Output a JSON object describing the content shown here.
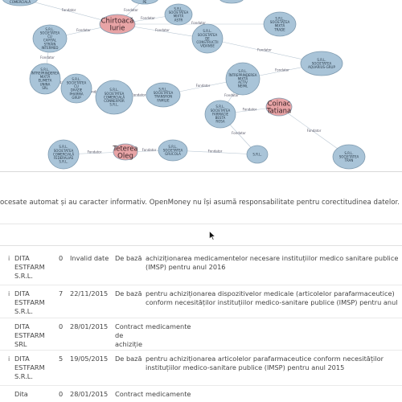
{
  "graph": {
    "nodes": [
      {
        "id": "n0",
        "lines": [
          "S.R.L.",
          "SOCIETATEA",
          "COMERCIALĂ"
        ],
        "color": "#a9c4d8",
        "kind": "company"
      },
      {
        "id": "n1",
        "lines": [
          "S.R.L.",
          "SOCIETATEA",
          "PE"
        ],
        "color": "#a9c4d8",
        "kind": "company"
      },
      {
        "id": "n2",
        "lines": [
          "S.R.L."
        ],
        "color": "#a9c4d8",
        "kind": "company"
      },
      {
        "id": "n3",
        "lines": [
          "Chirtoacă",
          "Iurie"
        ],
        "color": "#e8a4a6",
        "kind": "person"
      },
      {
        "id": "n4",
        "lines": [
          "S.R.L.",
          "SOCIETATEA",
          "CU",
          "CAPITAL",
          "STRĂIN",
          "INTERMED"
        ],
        "color": "#a9c4d8",
        "kind": "company"
      },
      {
        "id": "n5",
        "lines": [
          "S.R.L.",
          "SOCIETATEA",
          "DE",
          "CONSTRUCȚII",
          "VIDANSE"
        ],
        "color": "#a9c4d8",
        "kind": "company"
      },
      {
        "id": "n6",
        "lines": [
          "S.R.L.",
          "SOCIETATEA",
          "MIXTĂ",
          "ASTR"
        ],
        "color": "#a9c4d8",
        "kind": "company"
      },
      {
        "id": "n7",
        "lines": [
          "S.R.L.",
          "SOCIETATEA",
          "MIXTĂ",
          "TRADE"
        ],
        "color": "#a9c4d8",
        "kind": "company"
      },
      {
        "id": "n8",
        "lines": [
          "S.R.L.",
          "ÎNTREPRINDEREA",
          "MIXTĂ",
          "ELIMETA",
          "UNINA",
          "SRL"
        ],
        "color": "#a9c4d8",
        "kind": "company"
      },
      {
        "id": "n9",
        "lines": [
          "S.R.L.",
          "SOCIETATEA",
          "CU",
          "DIVIZIE",
          "PHARMA",
          "GRUP"
        ],
        "color": "#a9c4d8",
        "kind": "company"
      },
      {
        "id": "n10",
        "lines": [
          "S.R.L.",
          "SOCIETATEA",
          "COMERCIALĂ",
          "CONNEXPOR",
          "S.R.L."
        ],
        "color": "#a9c4d8",
        "kind": "company"
      },
      {
        "id": "n11",
        "lines": [
          "S.R.L.",
          "SOCIETATEA",
          "TRANSRON",
          "FAMILIE"
        ],
        "color": "#a9c4d8",
        "kind": "company"
      },
      {
        "id": "n12",
        "lines": [
          "S.R.L.",
          "ÎNTREPRINDEREA",
          "MIXTĂ",
          "ACTIV",
          "NEIML"
        ],
        "color": "#a9c4d8",
        "kind": "company"
      },
      {
        "id": "n13",
        "lines": [
          "S.R.L.",
          "SOCIETATEA",
          "AQUARIUS-GRUP"
        ],
        "color": "#a9c4d8",
        "kind": "company"
      },
      {
        "id": "n14",
        "lines": [
          "S.R.L.",
          "SOCIETATEA",
          "FARMACIE",
          "BESTA",
          "ROSA"
        ],
        "color": "#a9c4d8",
        "kind": "company"
      },
      {
        "id": "n15",
        "lines": [
          "Coinac",
          "Tatiana"
        ],
        "color": "#e8a4a6",
        "kind": "person"
      },
      {
        "id": "n16",
        "lines": [
          "S.R.L.",
          "SOCIETATEA",
          "COMERCIALĂ",
          "FEDERALIAS",
          "S.R.L."
        ],
        "color": "#a9c4d8",
        "kind": "company"
      },
      {
        "id": "n17",
        "lines": [
          "Teterea",
          "Oleg"
        ],
        "color": "#e8a4a6",
        "kind": "person"
      },
      {
        "id": "n18",
        "lines": [
          "S.R.L.",
          "SOCIETATEA",
          "GRUCOLA"
        ],
        "color": "#a9c4d8",
        "kind": "company"
      },
      {
        "id": "n19",
        "lines": [
          "S.R.L.",
          "SOCIETATEA",
          "TRAN"
        ],
        "color": "#a9c4d8",
        "kind": "company"
      },
      {
        "id": "n20",
        "lines": [
          "S.R.L."
        ],
        "color": "#a9c4d8",
        "kind": "company"
      }
    ],
    "edges": [
      {
        "from": "n3",
        "to": "n0",
        "label": "Fondator"
      },
      {
        "from": "n3",
        "to": "n1",
        "label": "Fondator"
      },
      {
        "from": "n3",
        "to": "n4",
        "label": "Fondator"
      },
      {
        "from": "n3",
        "to": "n5",
        "label": "Fondator"
      },
      {
        "from": "n3",
        "to": "n7",
        "label": "Fondator"
      },
      {
        "from": "n3",
        "to": "n6",
        "label": "Fondator"
      },
      {
        "from": "n4",
        "to": "n8",
        "label": "Fondator"
      },
      {
        "from": "n8",
        "to": "n9",
        "label": "Fondator"
      },
      {
        "from": "n9",
        "to": "n10",
        "label": "Fondator"
      },
      {
        "from": "n10",
        "to": "n11",
        "label": "Fondator"
      },
      {
        "from": "n11",
        "to": "n12",
        "label": "Fondator"
      },
      {
        "from": "n12",
        "to": "n13",
        "label": "Fondator"
      },
      {
        "from": "n12",
        "to": "n14",
        "label": "Fondator"
      },
      {
        "from": "n14",
        "to": "n15",
        "label": "Fondator"
      },
      {
        "from": "n15",
        "to": "n19",
        "label": "Fondator"
      },
      {
        "from": "n17",
        "to": "n16",
        "label": "Fondator"
      },
      {
        "from": "n17",
        "to": "n18",
        "label": "Fondator"
      },
      {
        "from": "n18",
        "to": "n20",
        "label": "Fondator"
      },
      {
        "from": "n14",
        "to": "n20",
        "label": "Fondator"
      },
      {
        "from": "n5",
        "to": "n13",
        "label": "Fondator"
      }
    ]
  },
  "disclaimer": "ocesate automat și au caracter informativ. OpenMoney nu își asumă responsabilitate pentru corectitudinea datelor. Mai multe",
  "contracts": [
    {
      "bullet": "i",
      "company": "DITA ESTFARM S.R.L.",
      "num": "0",
      "date": "Invalid date",
      "procedure": "De bază",
      "object": "achiziționarea medicamentelor necesare instituțiilor medico sanitare publice (IMSP) pentru anul 2016"
    },
    {
      "bullet": "i",
      "company": "DITA ESTFARM S.R.L.",
      "num": "7",
      "date": "22/11/2015",
      "procedure": "De bază",
      "object": "pentru achiziționarea dispozitivelor medicale (articolelor parafarmaceutice) conform necesităților instituțiilor medico-sanitare publice (IMSP) pentru anul"
    },
    {
      "bullet": "",
      "company": "DITA ESTFARM SRL",
      "num": "0",
      "date": "28/01/2015",
      "procedure": "Contract de achiziție",
      "object": "medicamente"
    },
    {
      "bullet": "i",
      "company": "DITA ESTFARM S.R.L.",
      "num": "5",
      "date": "19/05/2015",
      "procedure": "De bază",
      "object": "pentru achiziționarea articolelor parafarmaceutice conform necesităților instituțiilor medico-sanitare publice (IMSP) pentru anul 2015"
    },
    {
      "bullet": "",
      "company": "Dita",
      "num": "0",
      "date": "28/01/2015",
      "procedure": "Contract",
      "object": "medicamente"
    }
  ]
}
